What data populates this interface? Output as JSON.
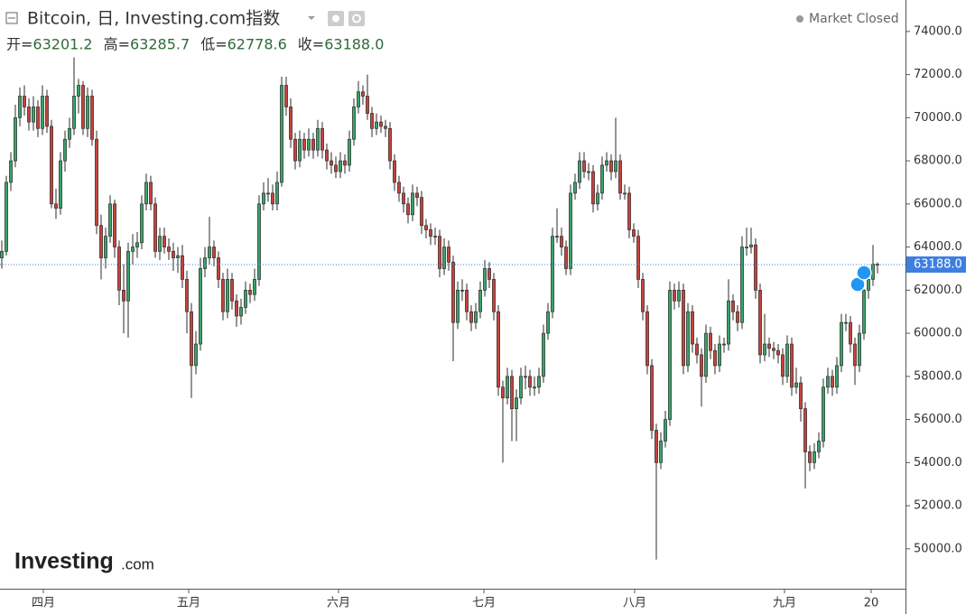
{
  "chart_data": {
    "type": "candlestick",
    "title": "Bitcoin, 日, Investing.com指数",
    "ohlc_header": [
      {
        "label": "开=",
        "value": "63201.2"
      },
      {
        "label": "高=",
        "value": "63285.7"
      },
      {
        "label": "低=",
        "value": "62778.6"
      },
      {
        "label": "收=",
        "value": "63188.0"
      }
    ],
    "status": "Market Closed",
    "logo": {
      "brand": "Investing",
      "suffix": ".com"
    },
    "up_color": "#3aa36a",
    "down_color": "#c6433b",
    "wick_color": "#2b2b2b",
    "last_price": {
      "value": 63188,
      "label": "63188.0"
    },
    "last_price_color": "#3d7fe0",
    "xlim": [
      -0.4,
      200.2
    ],
    "xticks": [
      {
        "value": 9.2,
        "label": "四月"
      },
      {
        "value": 41.4,
        "label": "五月"
      },
      {
        "value": 74.6,
        "label": "六月"
      },
      {
        "value": 106.8,
        "label": "七月"
      },
      {
        "value": 140.2,
        "label": "八月"
      },
      {
        "value": 173.4,
        "label": "九月"
      },
      {
        "value": 192.6,
        "label": "20"
      }
    ],
    "ylim": [
      48150,
      75460
    ],
    "yticks": [
      {
        "value": 50000,
        "label": "50000.0"
      },
      {
        "value": 52000,
        "label": "52000.0"
      },
      {
        "value": 54000,
        "label": "54000.0"
      },
      {
        "value": 56000,
        "label": "56000.0"
      },
      {
        "value": 58000,
        "label": "58000.0"
      },
      {
        "value": 60000,
        "label": "60000.0"
      },
      {
        "value": 62000,
        "label": "62000.0"
      },
      {
        "value": 64000,
        "label": "64000.0"
      },
      {
        "value": 66000,
        "label": "66000.0"
      },
      {
        "value": 68000,
        "label": "68000.0"
      },
      {
        "value": 70000,
        "label": "70000.0"
      },
      {
        "value": 72000,
        "label": "72000.0"
      },
      {
        "value": 74000,
        "label": "74000.0"
      }
    ],
    "grid": false,
    "candles": [
      [
        63500,
        64300,
        63000,
        63800
      ],
      [
        63800,
        67300,
        63600,
        67000
      ],
      [
        67000,
        68400,
        66600,
        68000
      ],
      [
        68000,
        70600,
        67700,
        70000
      ],
      [
        70000,
        71400,
        69600,
        71000
      ],
      [
        71000,
        71500,
        70100,
        70500
      ],
      [
        70500,
        70900,
        69400,
        69800
      ],
      [
        69800,
        71000,
        69400,
        70500
      ],
      [
        70500,
        70800,
        69100,
        69500
      ],
      [
        69500,
        71500,
        69200,
        71000
      ],
      [
        71000,
        71300,
        69300,
        69600
      ],
      [
        69600,
        69900,
        65800,
        66000
      ],
      [
        66000,
        66700,
        65300,
        65800
      ],
      [
        65800,
        68400,
        65500,
        68000
      ],
      [
        68000,
        69400,
        67500,
        69000
      ],
      [
        69000,
        70000,
        68600,
        69500
      ],
      [
        69500,
        72800,
        69200,
        71000
      ],
      [
        71000,
        71800,
        70200,
        71500
      ],
      [
        71500,
        71700,
        69200,
        69500
      ],
      [
        69500,
        71400,
        69100,
        71000
      ],
      [
        71000,
        71300,
        68700,
        69000
      ],
      [
        69000,
        69400,
        64600,
        65000
      ],
      [
        65000,
        65500,
        62500,
        63500
      ],
      [
        63500,
        64900,
        63000,
        64500
      ],
      [
        64500,
        66400,
        64200,
        66000
      ],
      [
        66000,
        66200,
        63500,
        64000
      ],
      [
        64000,
        64300,
        61300,
        62000
      ],
      [
        62000,
        63200,
        60000,
        61500
      ],
      [
        61500,
        64200,
        59800,
        63800
      ],
      [
        63800,
        64600,
        63200,
        64000
      ],
      [
        64000,
        64700,
        63500,
        64200
      ],
      [
        64200,
        66400,
        63900,
        66000
      ],
      [
        66000,
        67400,
        65700,
        67000
      ],
      [
        67000,
        67300,
        65700,
        66000
      ],
      [
        66000,
        66300,
        63500,
        63800
      ],
      [
        63800,
        64900,
        63400,
        64500
      ],
      [
        64500,
        64900,
        63700,
        64000
      ],
      [
        64000,
        64400,
        63400,
        63800
      ],
      [
        63800,
        64200,
        62900,
        63500
      ],
      [
        63500,
        64000,
        62800,
        63600
      ],
      [
        63600,
        64100,
        62100,
        62500
      ],
      [
        62500,
        62900,
        60000,
        61000
      ],
      [
        61000,
        61400,
        57000,
        58500
      ],
      [
        58500,
        60100,
        58100,
        59500
      ],
      [
        59500,
        63500,
        59200,
        63000
      ],
      [
        63000,
        64000,
        62600,
        63500
      ],
      [
        63500,
        65400,
        63200,
        64000
      ],
      [
        64000,
        64300,
        63100,
        63500
      ],
      [
        63500,
        63800,
        62100,
        62500
      ],
      [
        62500,
        62800,
        60600,
        61000
      ],
      [
        61000,
        63000,
        60700,
        62500
      ],
      [
        62500,
        62800,
        61100,
        61500
      ],
      [
        61500,
        61800,
        60300,
        60800
      ],
      [
        60800,
        61600,
        60400,
        61200
      ],
      [
        61200,
        62400,
        60900,
        62000
      ],
      [
        62000,
        62300,
        61400,
        61800
      ],
      [
        61800,
        63000,
        61500,
        62500
      ],
      [
        62500,
        66400,
        62200,
        66000
      ],
      [
        66000,
        67000,
        65700,
        66500
      ],
      [
        66500,
        67200,
        66100,
        66500
      ],
      [
        66500,
        66900,
        65700,
        66000
      ],
      [
        66000,
        67500,
        65700,
        67000
      ],
      [
        67000,
        71900,
        66800,
        71500
      ],
      [
        71500,
        71900,
        70100,
        70500
      ],
      [
        70500,
        70900,
        68600,
        69000
      ],
      [
        69000,
        69300,
        67600,
        68000
      ],
      [
        68000,
        69400,
        67700,
        69000
      ],
      [
        69000,
        69300,
        68100,
        68500
      ],
      [
        68500,
        69500,
        68200,
        69000
      ],
      [
        69000,
        69300,
        68100,
        68500
      ],
      [
        68500,
        69900,
        68200,
        69500
      ],
      [
        69500,
        69800,
        68100,
        68500
      ],
      [
        68500,
        68800,
        67600,
        68000
      ],
      [
        68000,
        68400,
        67400,
        67800
      ],
      [
        67800,
        68200,
        67200,
        67500
      ],
      [
        67500,
        68400,
        67200,
        68000
      ],
      [
        68000,
        68300,
        67400,
        67800
      ],
      [
        67800,
        69400,
        67500,
        69000
      ],
      [
        69000,
        70900,
        68700,
        70500
      ],
      [
        70500,
        71700,
        70200,
        71200
      ],
      [
        71200,
        71500,
        70600,
        71000
      ],
      [
        71000,
        72000,
        69900,
        70200
      ],
      [
        70200,
        70500,
        69100,
        69500
      ],
      [
        69500,
        70200,
        69200,
        69800
      ],
      [
        69800,
        70100,
        69300,
        69600
      ],
      [
        69600,
        69900,
        69100,
        69500
      ],
      [
        69500,
        69800,
        67600,
        68000
      ],
      [
        68000,
        68300,
        66600,
        67000
      ],
      [
        67000,
        67300,
        66100,
        66500
      ],
      [
        66500,
        66800,
        65600,
        66000
      ],
      [
        66000,
        66300,
        65100,
        65500
      ],
      [
        65500,
        66900,
        65200,
        66500
      ],
      [
        66500,
        66800,
        65900,
        66300
      ],
      [
        66300,
        66600,
        64600,
        65000
      ],
      [
        65000,
        65300,
        64400,
        64800
      ],
      [
        64800,
        65100,
        64100,
        64500
      ],
      [
        64500,
        64900,
        64100,
        64500
      ],
      [
        64500,
        64800,
        62600,
        63000
      ],
      [
        63000,
        64400,
        62700,
        64000
      ],
      [
        64000,
        64300,
        62900,
        63300
      ],
      [
        63300,
        63600,
        58700,
        60500
      ],
      [
        60500,
        62400,
        60200,
        62000
      ],
      [
        62000,
        62500,
        61500,
        62000
      ],
      [
        62000,
        62300,
        60600,
        61000
      ],
      [
        61000,
        61300,
        60100,
        60500
      ],
      [
        60500,
        61400,
        60200,
        61000
      ],
      [
        61000,
        62400,
        60700,
        62000
      ],
      [
        62000,
        63400,
        61700,
        63000
      ],
      [
        63000,
        63300,
        62100,
        62500
      ],
      [
        62500,
        62800,
        60600,
        61000
      ],
      [
        61000,
        61300,
        57100,
        57500
      ],
      [
        57500,
        57800,
        54000,
        57000
      ],
      [
        57000,
        58400,
        56700,
        58000
      ],
      [
        58000,
        58300,
        55000,
        56500
      ],
      [
        56500,
        57400,
        55000,
        57000
      ],
      [
        57000,
        58400,
        56700,
        58000
      ],
      [
        58000,
        58500,
        57400,
        58000
      ],
      [
        58000,
        58300,
        57100,
        57500
      ],
      [
        57500,
        58000,
        57100,
        57500
      ],
      [
        57500,
        58400,
        57200,
        58000
      ],
      [
        58000,
        60400,
        57700,
        60000
      ],
      [
        60000,
        61400,
        59700,
        61000
      ],
      [
        61000,
        64900,
        60700,
        64500
      ],
      [
        64500,
        65800,
        64200,
        64500
      ],
      [
        64500,
        64900,
        63600,
        64000
      ],
      [
        64000,
        64300,
        62700,
        63000
      ],
      [
        63000,
        66900,
        62700,
        66500
      ],
      [
        66500,
        67400,
        66200,
        67000
      ],
      [
        67000,
        68400,
        66700,
        68000
      ],
      [
        68000,
        68400,
        67200,
        67500
      ],
      [
        67500,
        67900,
        67100,
        67500
      ],
      [
        67500,
        67800,
        65600,
        66000
      ],
      [
        66000,
        66900,
        65700,
        66500
      ],
      [
        66500,
        68200,
        66200,
        67800
      ],
      [
        67800,
        68400,
        67500,
        68000
      ],
      [
        68000,
        68300,
        67100,
        67500
      ],
      [
        67500,
        70000,
        67200,
        68000
      ],
      [
        68000,
        68300,
        66200,
        66500
      ],
      [
        66500,
        66900,
        66200,
        66500
      ],
      [
        66500,
        66800,
        64400,
        64800
      ],
      [
        64800,
        65100,
        64200,
        64500
      ],
      [
        64500,
        64800,
        62100,
        62500
      ],
      [
        62500,
        62800,
        60600,
        61000
      ],
      [
        61000,
        61300,
        58100,
        58500
      ],
      [
        58500,
        58800,
        55100,
        55500
      ],
      [
        55500,
        55800,
        49500,
        54000
      ],
      [
        54000,
        55400,
        53700,
        55000
      ],
      [
        55000,
        56400,
        54700,
        56000
      ],
      [
        56000,
        62400,
        55700,
        62000
      ],
      [
        62000,
        62300,
        61100,
        61500
      ],
      [
        61500,
        62400,
        61200,
        62000
      ],
      [
        62000,
        62300,
        58100,
        58500
      ],
      [
        58500,
        61400,
        58200,
        61000
      ],
      [
        61000,
        61300,
        59100,
        59500
      ],
      [
        59500,
        59800,
        58600,
        59000
      ],
      [
        59000,
        59300,
        56600,
        58000
      ],
      [
        58000,
        60400,
        57700,
        60000
      ],
      [
        60000,
        60300,
        58800,
        59200
      ],
      [
        59200,
        59500,
        58100,
        58500
      ],
      [
        58500,
        59900,
        58200,
        59500
      ],
      [
        59500,
        59800,
        59100,
        59500
      ],
      [
        59500,
        62500,
        59200,
        61500
      ],
      [
        61500,
        61800,
        60600,
        61000
      ],
      [
        61000,
        61300,
        60100,
        60500
      ],
      [
        60500,
        64500,
        60200,
        64000
      ],
      [
        64000,
        64900,
        63600,
        64000
      ],
      [
        64000,
        64900,
        63700,
        64100
      ],
      [
        64100,
        64400,
        61600,
        62000
      ],
      [
        62000,
        62300,
        58600,
        59000
      ],
      [
        59000,
        60900,
        58700,
        59500
      ],
      [
        59500,
        59800,
        58900,
        59300
      ],
      [
        59300,
        59600,
        58800,
        59200
      ],
      [
        59200,
        59500,
        58600,
        59000
      ],
      [
        59000,
        59300,
        57600,
        58000
      ],
      [
        58000,
        59900,
        57700,
        59500
      ],
      [
        59500,
        59800,
        57100,
        57500
      ],
      [
        57500,
        58400,
        57200,
        57700
      ],
      [
        57700,
        58000,
        55900,
        56500
      ],
      [
        56500,
        56800,
        52800,
        54500
      ],
      [
        54500,
        54800,
        53600,
        54000
      ],
      [
        54000,
        54900,
        53700,
        54500
      ],
      [
        54500,
        55400,
        54200,
        55000
      ],
      [
        55000,
        57900,
        54700,
        57500
      ],
      [
        57500,
        58400,
        57200,
        58000
      ],
      [
        58000,
        58300,
        57100,
        57500
      ],
      [
        57500,
        58900,
        57200,
        58500
      ],
      [
        58500,
        60900,
        58200,
        60500
      ],
      [
        60500,
        60900,
        60100,
        60500
      ],
      [
        60500,
        60800,
        59100,
        59500
      ],
      [
        59500,
        59800,
        57600,
        58500
      ],
      [
        58500,
        60400,
        58200,
        60000
      ],
      [
        60000,
        62400,
        59700,
        62000
      ],
      [
        62000,
        62900,
        61600,
        62500
      ],
      [
        62500,
        64100,
        62200,
        63200
      ],
      [
        63201.2,
        63285.7,
        62778.6,
        63188
      ]
    ]
  }
}
